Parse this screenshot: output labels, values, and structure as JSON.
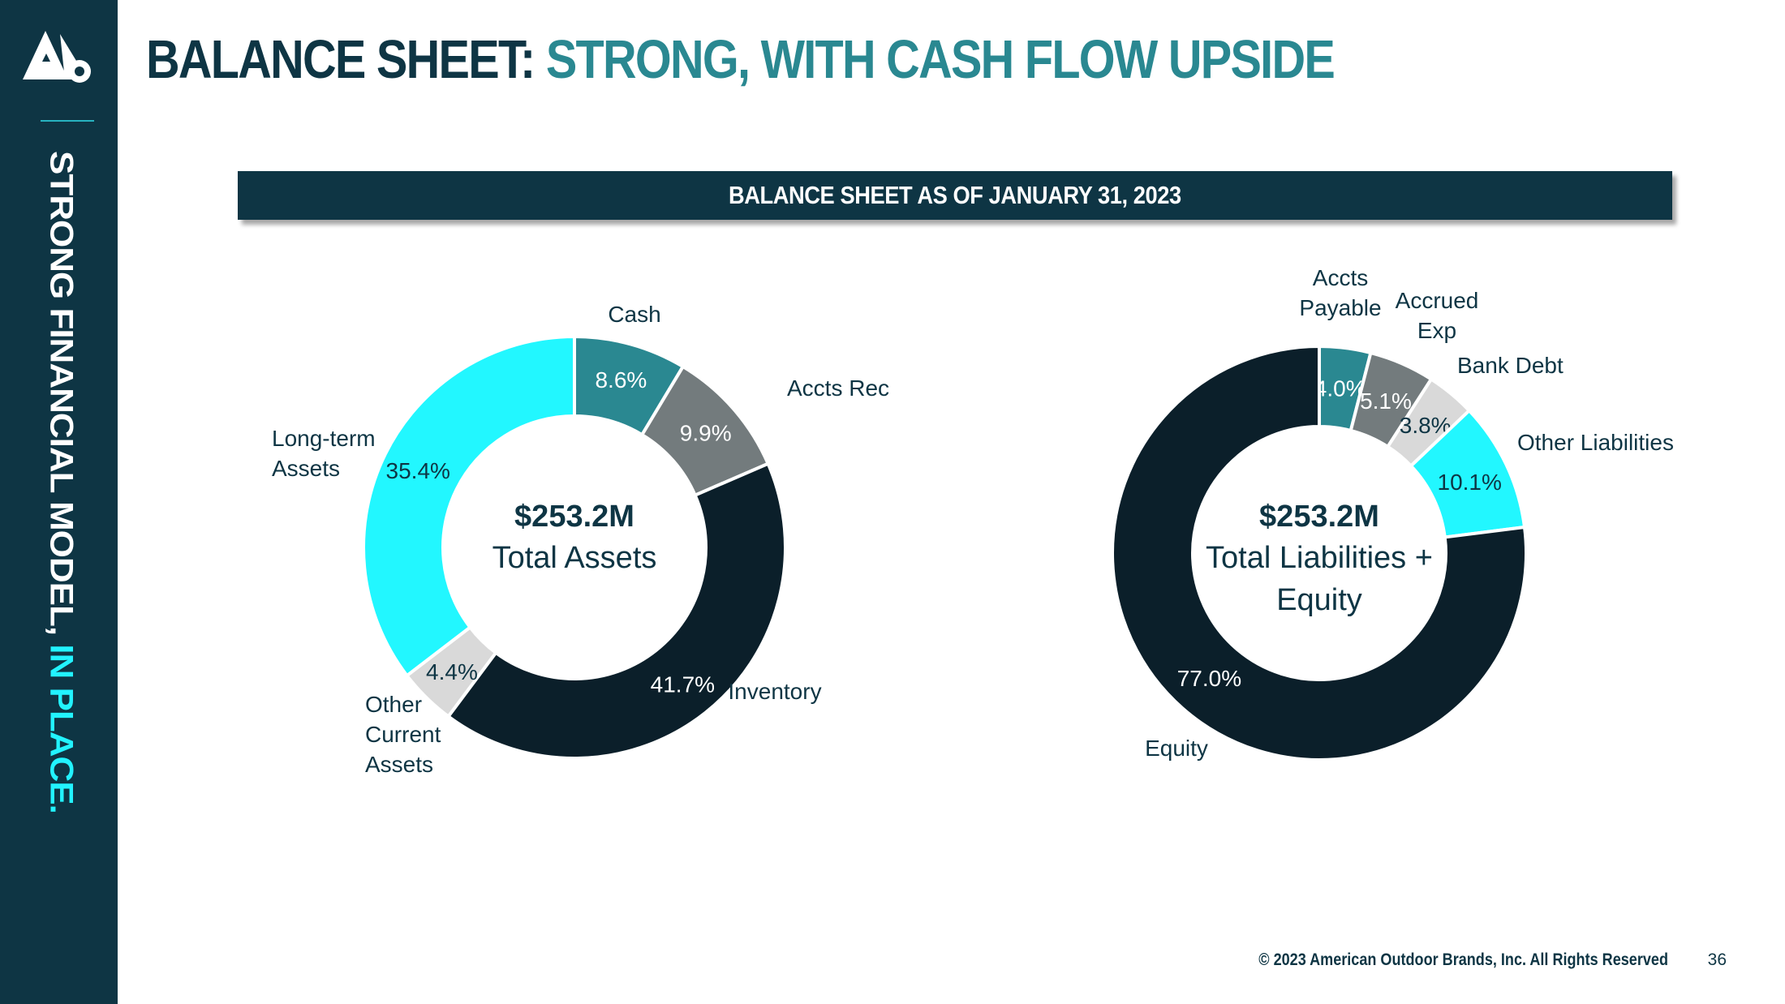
{
  "sidebar": {
    "tagline_main": "STRONG FINANCIAL MODEL, ",
    "tagline_accent": "IN PLACE."
  },
  "header": {
    "title_dark": "BALANCE SHEET: ",
    "title_teal": "STRONG, WITH CASH FLOW UPSIDE"
  },
  "section": {
    "title": "BALANCE SHEET AS OF JANUARY 31, 2023"
  },
  "chart_data": [
    {
      "type": "pie",
      "center_value": "$253.2M",
      "center_label": [
        "Total Assets"
      ],
      "slices": [
        {
          "label": [
            "Cash"
          ],
          "value": 8.6,
          "value_label": "8.6%",
          "color": "#2a8891",
          "text_color": "#ffffff"
        },
        {
          "label": [
            "Accts Rec"
          ],
          "value": 9.9,
          "value_label": "9.9%",
          "color": "#737b7d",
          "text_color": "#ffffff"
        },
        {
          "label": [
            "Inventory"
          ],
          "value": 41.7,
          "value_label": "41.7%",
          "color": "#0b1f2a",
          "text_color": "#ffffff"
        },
        {
          "label": [
            "Other",
            "Current",
            "Assets"
          ],
          "value": 4.4,
          "value_label": "4.4%",
          "color": "#d9d9d9",
          "text_color": "#0e3544"
        },
        {
          "label": [
            "Long-term",
            "Assets"
          ],
          "value": 35.4,
          "value_label": "35.4%",
          "color": "#22f7ff",
          "text_color": "#0e3544"
        }
      ]
    },
    {
      "type": "pie",
      "center_value": "$253.2M",
      "center_label": [
        "Total Liabilities +",
        "Equity"
      ],
      "slices": [
        {
          "label": [
            "Accts",
            "Payable"
          ],
          "value": 4.0,
          "value_label": "4.0%",
          "color": "#2a8891",
          "text_color": "#ffffff"
        },
        {
          "label": [
            "Accrued",
            "Exp"
          ],
          "value": 5.1,
          "value_label": "5.1%",
          "color": "#737b7d",
          "text_color": "#ffffff"
        },
        {
          "label": [
            "Bank Debt"
          ],
          "value": 3.8,
          "value_label": "3.8%",
          "color": "#d9d9d9",
          "text_color": "#0e3544"
        },
        {
          "label": [
            "Other Liabilities"
          ],
          "value": 10.1,
          "value_label": "10.1%",
          "color": "#22f7ff",
          "text_color": "#0e3544"
        },
        {
          "label": [
            "Equity"
          ],
          "value": 77.0,
          "value_label": "77.0%",
          "color": "#0b1f2a",
          "text_color": "#ffffff"
        }
      ]
    }
  ],
  "footer": {
    "copyright": "© 2023 American Outdoor Brands, Inc. All Rights Reserved",
    "page_number": "36"
  }
}
